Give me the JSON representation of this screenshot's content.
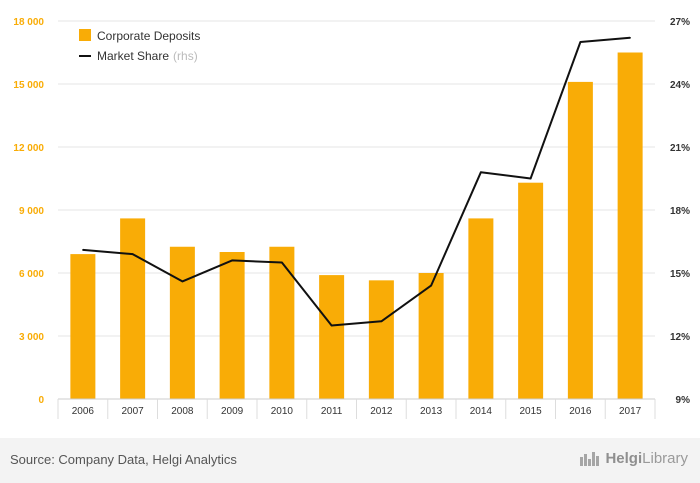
{
  "chart_data": {
    "type": "bar+line",
    "categories": [
      "2006",
      "2007",
      "2008",
      "2009",
      "2010",
      "2011",
      "2012",
      "2013",
      "2014",
      "2015",
      "2016",
      "2017"
    ],
    "series": [
      {
        "name": "Corporate Deposits",
        "type": "bar",
        "axis": "left",
        "color": "#f9ac06",
        "values": [
          6900,
          8600,
          7250,
          7000,
          7250,
          5900,
          5650,
          6000,
          8600,
          10300,
          15100,
          16500
        ]
      },
      {
        "name": "Market Share",
        "legend_suffix": "(rhs)",
        "type": "line",
        "axis": "right",
        "color": "#111111",
        "values": [
          16.1,
          15.9,
          14.6,
          15.6,
          15.5,
          12.5,
          12.7,
          14.4,
          19.8,
          19.5,
          26.0,
          26.2
        ]
      }
    ],
    "y_left": {
      "ticks": [
        0,
        3000,
        6000,
        9000,
        12000,
        15000,
        18000
      ],
      "tick_labels": [
        "0",
        "3 000",
        "6 000",
        "9 000",
        "12 000",
        "15 000",
        "18 000"
      ],
      "range": [
        0,
        18000
      ],
      "label_color": "#f9ac06"
    },
    "y_right": {
      "ticks": [
        9,
        12,
        15,
        18,
        21,
        24,
        27
      ],
      "tick_labels": [
        "9%",
        "12%",
        "15%",
        "18%",
        "21%",
        "24%",
        "27%"
      ],
      "range": [
        9,
        27
      ]
    },
    "grid": true,
    "legend_position": "top-left"
  },
  "footer": {
    "source": "Source: Company Data, Helgi Analytics",
    "logo_name": "HelgiLibrary",
    "logo_part1": "Helgi",
    "logo_part2": "Library",
    "logo_icon": "building-icon"
  }
}
